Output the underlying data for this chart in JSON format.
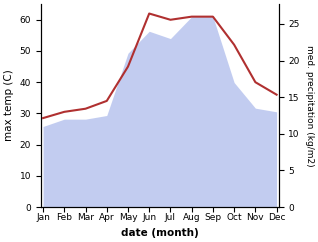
{
  "months": [
    "Jan",
    "Feb",
    "Mar",
    "Apr",
    "May",
    "Jun",
    "Jul",
    "Aug",
    "Sep",
    "Oct",
    "Nov",
    "Dec"
  ],
  "temp": [
    28.5,
    30.5,
    31.5,
    34,
    45,
    62,
    60,
    61,
    61,
    52,
    40,
    36
  ],
  "precip": [
    11,
    12,
    12,
    12.5,
    21,
    24,
    23,
    26,
    26,
    17,
    13.5,
    13
  ],
  "temp_color": "#b03030",
  "precip_fill_color": "#b8c4ee",
  "precip_fill_alpha": 0.85,
  "left_ylabel": "max temp (C)",
  "right_ylabel": "med. precipitation (kg/m2)",
  "xlabel": "date (month)",
  "ylim_left": [
    0,
    65
  ],
  "ylim_right": [
    0,
    27.7
  ],
  "left_yticks": [
    0,
    10,
    20,
    30,
    40,
    50,
    60
  ],
  "right_yticks": [
    0,
    5,
    10,
    15,
    20,
    25
  ],
  "bg_color": "#ffffff",
  "figsize": [
    3.18,
    2.42
  ],
  "dpi": 100
}
